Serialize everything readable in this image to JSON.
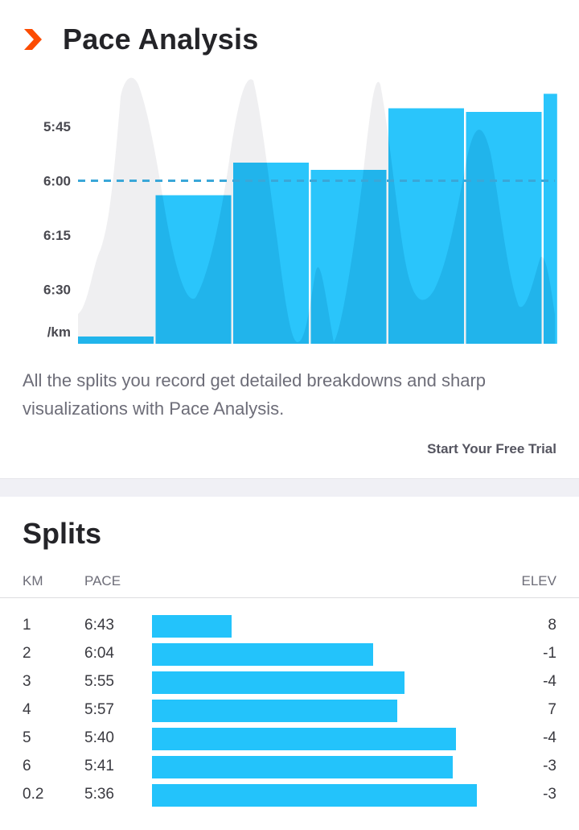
{
  "pace_analysis": {
    "title": "Pace Analysis",
    "icon": "strava-chevron-icon",
    "accent_color": "#fc4c02",
    "description": "All the splits you record get detailed breakdowns and sharp visualizations with Pace Analysis.",
    "cta_label": "Start Your Free Trial"
  },
  "chart_data": {
    "type": "bar",
    "y_ticks": [
      "5:45",
      "6:00",
      "6:15",
      "6:30"
    ],
    "y_unit_label": "/km",
    "y_scale": "pace, faster at top",
    "reference_line": "6:00",
    "bar_color": "#23c3fb",
    "background_area_color": "#efeff1",
    "bars": [
      {
        "km": "1",
        "pace": "6:43"
      },
      {
        "km": "2",
        "pace": "6:04"
      },
      {
        "km": "3",
        "pace": "5:55"
      },
      {
        "km": "4",
        "pace": "5:57"
      },
      {
        "km": "5",
        "pace": "5:40"
      },
      {
        "km": "6",
        "pace": "5:41"
      },
      {
        "km": "0.2",
        "pace": "5:36"
      }
    ]
  },
  "splits": {
    "title": "Splits",
    "headers": {
      "km": "KM",
      "pace": "PACE",
      "elev": "ELEV"
    },
    "bar_color": "#23c3fb",
    "rows": [
      {
        "km": "1",
        "pace": "6:43",
        "elev": "8",
        "level": 0.23
      },
      {
        "km": "2",
        "pace": "6:04",
        "elev": "-1",
        "level": 0.64
      },
      {
        "km": "3",
        "pace": "5:55",
        "elev": "-4",
        "level": 0.73
      },
      {
        "km": "4",
        "pace": "5:57",
        "elev": "7",
        "level": 0.71
      },
      {
        "km": "5",
        "pace": "5:40",
        "elev": "-4",
        "level": 0.88
      },
      {
        "km": "6",
        "pace": "5:41",
        "elev": "-3",
        "level": 0.87
      },
      {
        "km": "0.2",
        "pace": "5:36",
        "elev": "-3",
        "level": 0.94
      }
    ]
  }
}
